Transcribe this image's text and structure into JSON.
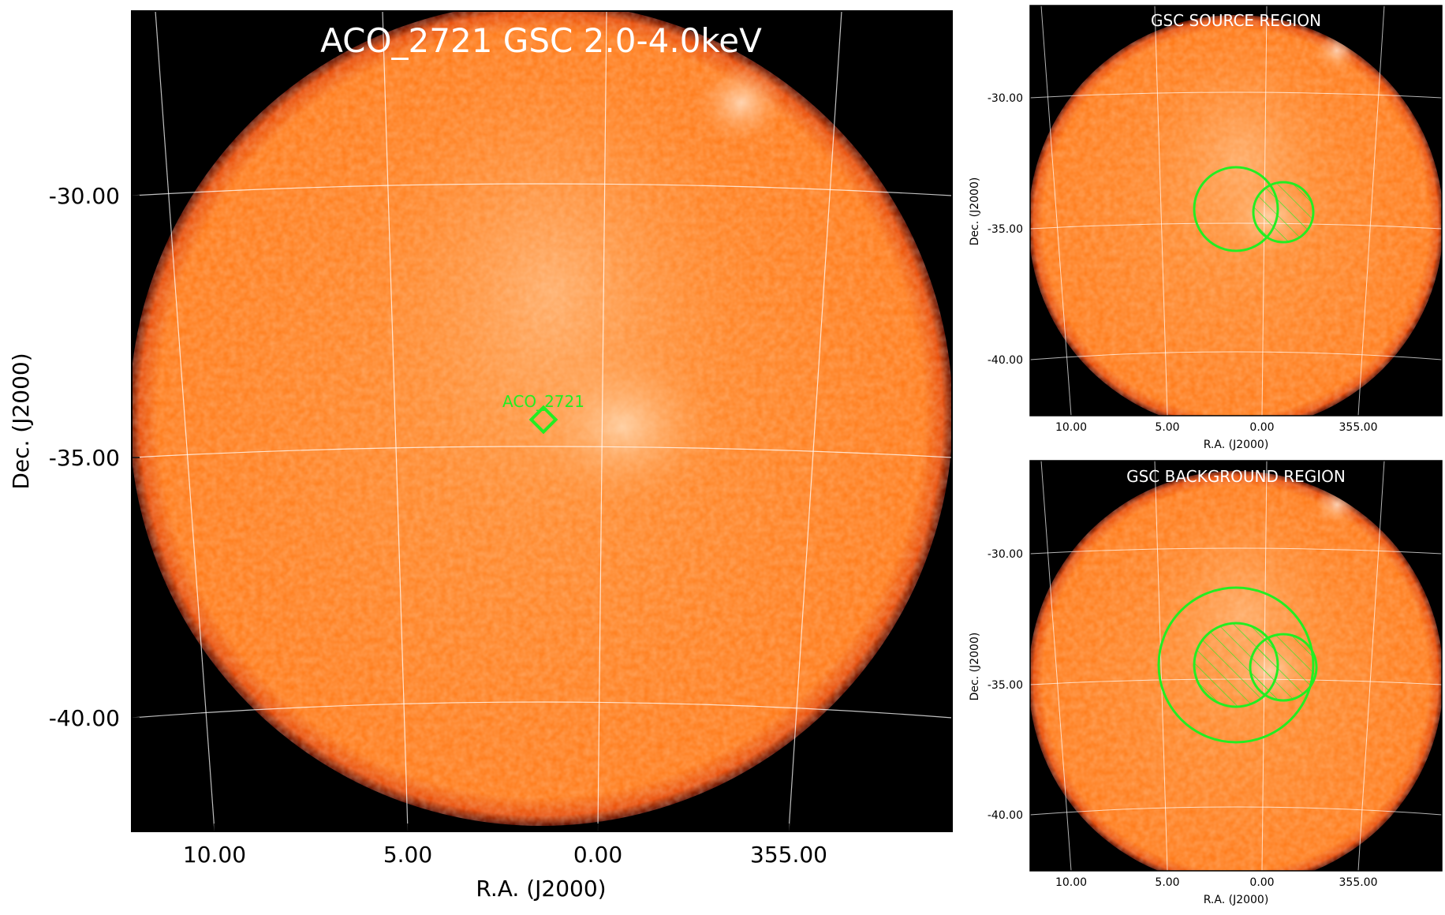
{
  "main": {
    "title": "ACO_2721 GSC 2.0-4.0keV",
    "source_label": "ACO_2721",
    "xlabel": "R.A. (J2000)",
    "ylabel": "Dec. (J2000)",
    "x_ticks": [
      "10.00",
      "5.00",
      "0.00",
      "355.00"
    ],
    "y_ticks": [
      "-30.00",
      "-35.00",
      "-40.00"
    ]
  },
  "source_panel": {
    "title": "GSC SOURCE REGION",
    "xlabel": "R.A. (J2000)",
    "ylabel": "Dec. (J2000)",
    "x_ticks": [
      "10.00",
      "5.00",
      "0.00",
      "355.00"
    ],
    "y_ticks": [
      "-30.00",
      "-35.00",
      "-40.00"
    ]
  },
  "background_panel": {
    "title": "GSC BACKGROUND REGION",
    "xlabel": "R.A. (J2000)",
    "ylabel": "Dec. (J2000)",
    "x_ticks": [
      "10.00",
      "5.00",
      "0.00",
      "355.00"
    ],
    "y_ticks": [
      "-30.00",
      "-35.00",
      "-40.00"
    ]
  },
  "colors": {
    "disk": "#ff7f1a",
    "disk_highlight": "#ffd2a0",
    "sky": "#000000",
    "region": "#22ee22",
    "grid": "#ffffff"
  }
}
